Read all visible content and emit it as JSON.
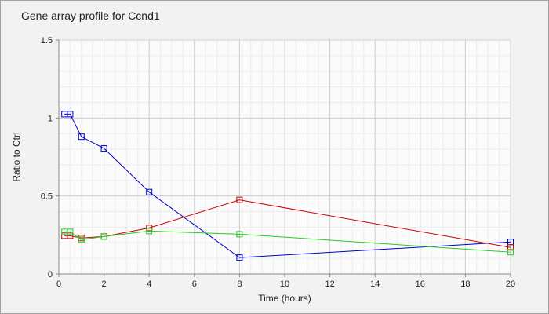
{
  "chart_data": {
    "type": "line",
    "title": "Gene array profile for Ccnd1",
    "xlabel": "Time (hours)",
    "ylabel": "Ratio to Ctrl",
    "xlim": [
      0,
      20
    ],
    "ylim": [
      0,
      1.5
    ],
    "xticks": [
      0,
      2,
      4,
      6,
      8,
      10,
      12,
      14,
      16,
      18,
      20
    ],
    "yticks": [
      0,
      0.5,
      1,
      1.5
    ],
    "ytick_labels": [
      "0",
      "0.5",
      "1",
      "1.5"
    ],
    "grid": true,
    "marker": "square",
    "series": [
      {
        "color": "#0000cc",
        "x": [
          0.25,
          0.5,
          1,
          2,
          4,
          8,
          20
        ],
        "y": [
          1.025,
          1.025,
          0.88,
          0.805,
          0.525,
          0.105,
          0.205
        ]
      },
      {
        "color": "#cc0000",
        "x": [
          0.25,
          0.5,
          1,
          2,
          4,
          8,
          20
        ],
        "y": [
          0.245,
          0.245,
          0.23,
          0.24,
          0.295,
          0.475,
          0.17
        ]
      },
      {
        "color": "#22cc22",
        "x": [
          0.25,
          0.5,
          1,
          2,
          4,
          8,
          20
        ],
        "y": [
          0.27,
          0.27,
          0.22,
          0.24,
          0.275,
          0.255,
          0.14
        ]
      }
    ]
  }
}
